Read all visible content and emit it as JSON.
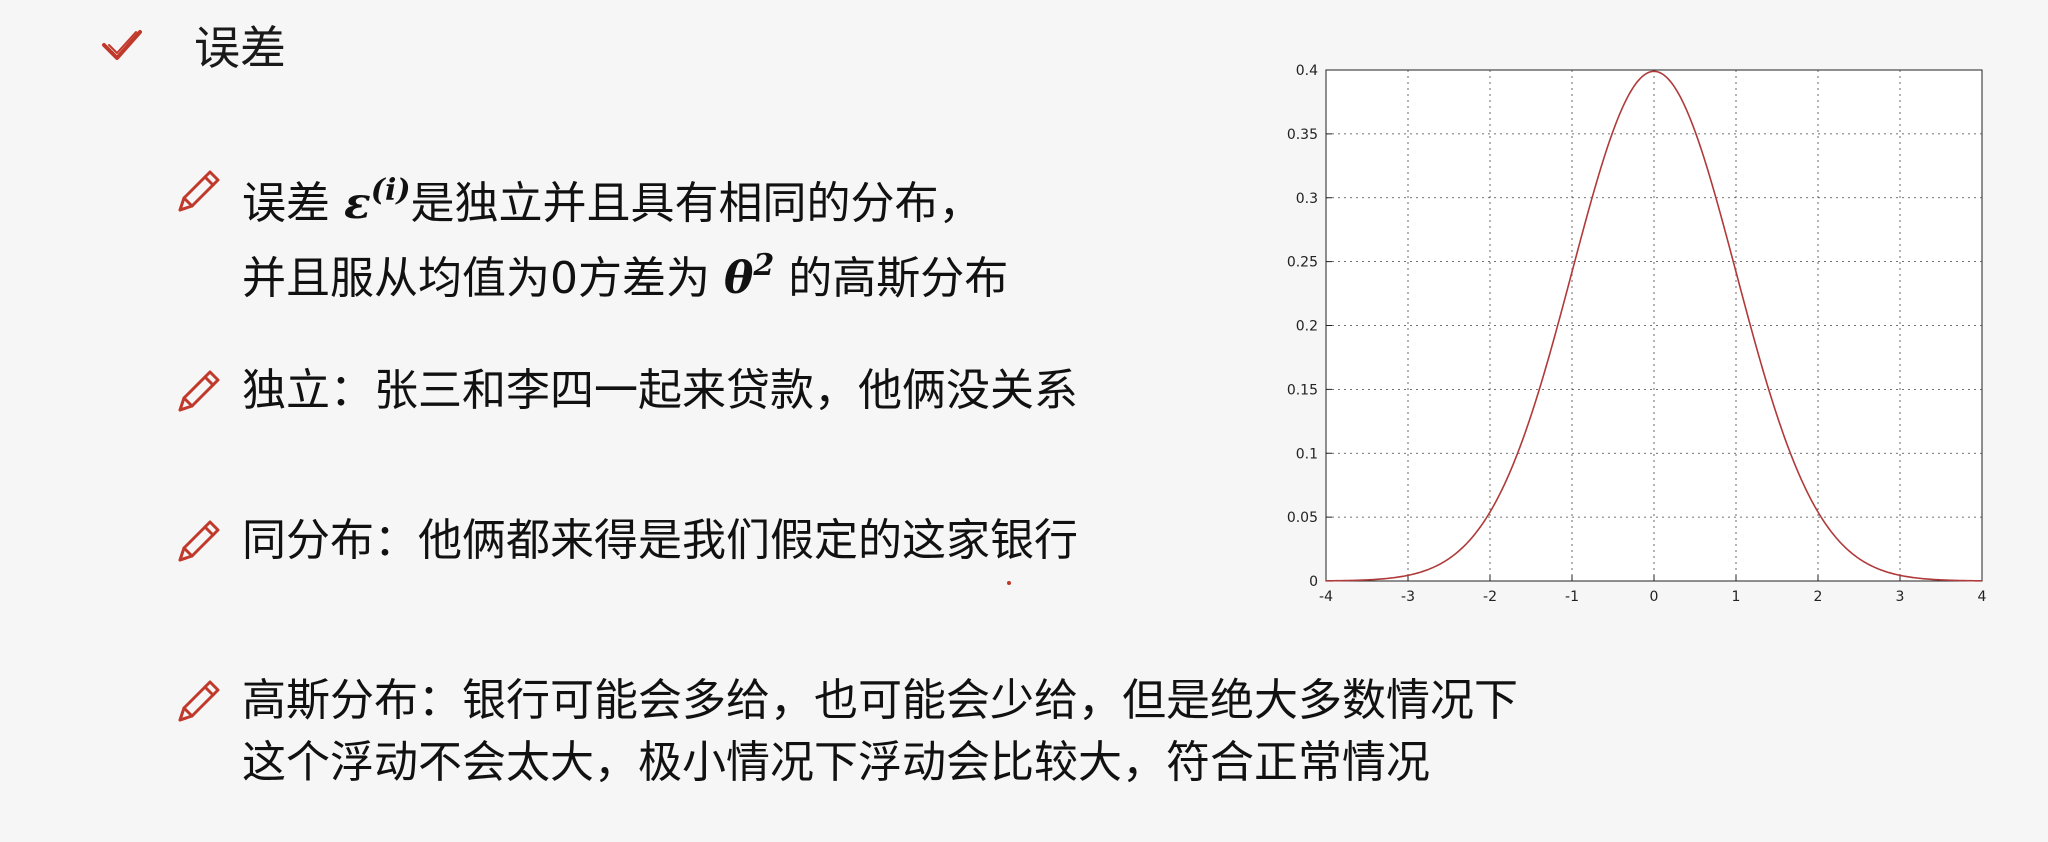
{
  "header": {
    "title": "误差",
    "icon": "check-icon",
    "accent": "#c0392b"
  },
  "bullets": [
    {
      "icon": "pencil-icon",
      "line1_prefix": "误差 ",
      "line1_math": "ε",
      "line1_math_sup": "(i)",
      "line1_suffix": "是独立并且具有相同的分布，",
      "line2_prefix": "并且服从均值为0方差为 ",
      "line2_math": "θ",
      "line2_math_sup": "2",
      "line2_suffix": " 的高斯分布"
    },
    {
      "icon": "pencil-icon",
      "text": "独立：张三和李四一起来贷款，他俩没关系"
    },
    {
      "icon": "pencil-icon",
      "text": "同分布：他俩都来得是我们假定的这家银行"
    },
    {
      "icon": "pencil-icon",
      "line1": "高斯分布：银行可能会多给，也可能会少给，但是绝大多数情况下",
      "line2": "这个浮动不会太大，极小情况下浮动会比较大，符合正常情况"
    }
  ],
  "chart_data": {
    "type": "line",
    "series": [
      {
        "function": "standard-normal-pdf",
        "mean": 0,
        "std": 1,
        "color": "#b03a3a"
      }
    ],
    "xlim": [
      -4,
      4
    ],
    "ylim": [
      0,
      0.4
    ],
    "xticks": [
      "-4",
      "-3",
      "-2",
      "-1",
      "0",
      "1",
      "2",
      "3",
      "4"
    ],
    "yticks": [
      "0",
      "0.05",
      "0.1",
      "0.15",
      "0.2",
      "0.25",
      "0.3",
      "0.35",
      "0.4"
    ],
    "grid": true
  }
}
